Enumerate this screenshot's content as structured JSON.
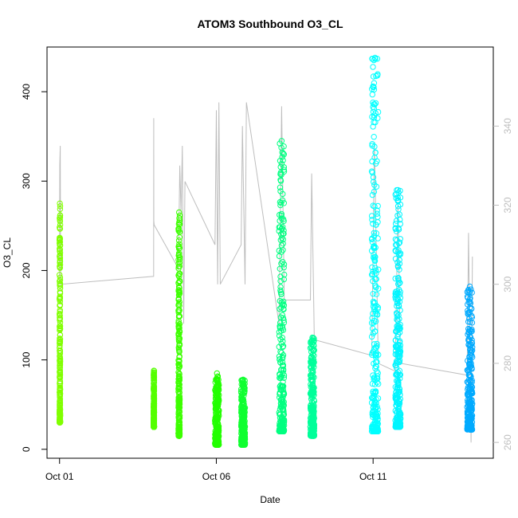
{
  "chart_data": {
    "type": "scatter",
    "title": "ATOM3 Southbound O3_CL",
    "xlabel": "Date",
    "ylabel": "O3_CL",
    "x_unit": "days",
    "xlim": [
      "2017-09-30T14:24",
      "2017-10-14T20:00"
    ],
    "ylim": [
      -10,
      450
    ],
    "y2lim": [
      256,
      360
    ],
    "x_ticks": [
      {
        "at": "2017-10-01T00:00",
        "label": "Oct 01"
      },
      {
        "at": "2017-10-06T00:00",
        "label": "Oct 06"
      },
      {
        "at": "2017-10-11T00:00",
        "label": "Oct 11"
      }
    ],
    "y_ticks": [
      0,
      100,
      200,
      300,
      400
    ],
    "y2_ticks": [
      260,
      280,
      300,
      320,
      340
    ],
    "grid": false,
    "colors": {
      "axis": "#000000",
      "secondary_axis": "#bebebe",
      "line": "#bebebe",
      "title": "#000000"
    },
    "series": [
      {
        "marker": "open-circle",
        "flights": [
          {
            "x_start": "2017-10-01T00:00",
            "x_end": "2017-10-01T00:30",
            "ymin": 30,
            "ymax": 275,
            "color": "#80ff00"
          },
          {
            "x_start": "2017-10-04T00:00",
            "x_end": "2017-10-04T00:25",
            "ymin": 25,
            "ymax": 88,
            "color": "#55ff00"
          },
          {
            "x_start": "2017-10-04T19:00",
            "x_end": "2017-10-04T20:00",
            "ymin": 15,
            "ymax": 265,
            "color": "#3dff00"
          },
          {
            "x_start": "2017-10-05T23:00",
            "x_end": "2017-10-06T02:00",
            "ymin": 5,
            "ymax": 85,
            "color": "#22ff00"
          },
          {
            "x_start": "2017-10-06T19:00",
            "x_end": "2017-10-06T22:00",
            "ymin": 5,
            "ymax": 78,
            "color": "#10ff30"
          },
          {
            "x_start": "2017-10-08T00:00",
            "x_end": "2017-10-08T04:00",
            "ymin": 20,
            "ymax": 345,
            "color": "#00ff80"
          },
          {
            "x_start": "2017-10-09T00:00",
            "x_end": "2017-10-09T03:00",
            "ymin": 15,
            "ymax": 125,
            "color": "#00ff9a"
          },
          {
            "x_start": "2017-10-10T23:00",
            "x_end": "2017-10-11T04:00",
            "ymin": 20,
            "ymax": 438,
            "color": "#00ffff"
          },
          {
            "x_start": "2017-10-11T17:00",
            "x_end": "2017-10-11T21:00",
            "ymin": 25,
            "ymax": 290,
            "color": "#00f5ff"
          },
          {
            "x_start": "2017-10-14T00:00",
            "x_end": "2017-10-14T04:00",
            "ymin": 22,
            "ymax": 182,
            "color": "#00aaff"
          }
        ]
      },
      {
        "axis": "secondary",
        "marker": "line",
        "color": "#bebebe",
        "points": [
          [
            "2017-10-01T00:00",
            300
          ],
          [
            "2017-10-01T00:10",
            330
          ],
          [
            "2017-10-01T00:30",
            335
          ],
          [
            "2017-10-01T00:50",
            300
          ],
          [
            "2017-10-04T00:00",
            302
          ],
          [
            "2017-10-04T00:05",
            342
          ],
          [
            "2017-10-04T00:10",
            316
          ],
          [
            "2017-10-04T00:25",
            315
          ],
          [
            "2017-10-04T19:00",
            304
          ],
          [
            "2017-10-04T20:00",
            330
          ],
          [
            "2017-10-04T21:00",
            318
          ],
          [
            "2017-10-04T22:00",
            335
          ],
          [
            "2017-10-04T23:00",
            290
          ],
          [
            "2017-10-05T00:00",
            326
          ],
          [
            "2017-10-05T23:00",
            310
          ],
          [
            "2017-10-06T00:00",
            344
          ],
          [
            "2017-10-06T01:00",
            300
          ],
          [
            "2017-10-06T02:00",
            346
          ],
          [
            "2017-10-06T03:00",
            300
          ],
          [
            "2017-10-06T19:00",
            310
          ],
          [
            "2017-10-06T20:00",
            340
          ],
          [
            "2017-10-06T22:00",
            300
          ],
          [
            "2017-10-06T23:00",
            346
          ],
          [
            "2017-10-08T00:00",
            290
          ],
          [
            "2017-10-08T02:00",
            345
          ],
          [
            "2017-10-08T04:00",
            296
          ],
          [
            "2017-10-09T00:00",
            296
          ],
          [
            "2017-10-09T01:00",
            328
          ],
          [
            "2017-10-09T03:00",
            286
          ],
          [
            "2017-10-10T23:00",
            282
          ],
          [
            "2017-10-11T01:00",
            336
          ],
          [
            "2017-10-11T04:00",
            280
          ],
          [
            "2017-10-11T17:00",
            278
          ],
          [
            "2017-10-11T19:00",
            320
          ],
          [
            "2017-10-11T21:00",
            280
          ],
          [
            "2017-10-14T00:00",
            277
          ],
          [
            "2017-10-14T01:00",
            313
          ],
          [
            "2017-10-14T03:00",
            260
          ],
          [
            "2017-10-14T04:00",
            307
          ]
        ]
      }
    ]
  }
}
